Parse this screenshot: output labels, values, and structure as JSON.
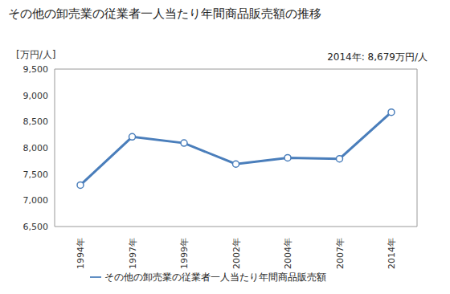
{
  "chart_data": {
    "type": "line",
    "title": "その他の卸売業の従業者一人当たり年間商品販売額の推移",
    "y_label": "[万円/人]",
    "annotation": "2014年: 8,679万円/人",
    "categories": [
      "1994年",
      "1997年",
      "1999年",
      "2002年",
      "2004年",
      "2007年",
      "2014年"
    ],
    "series": [
      {
        "name": "その他の卸売業の従業者一人当たり年間商品販売額",
        "color": "#4a7ebb",
        "marker": "circle",
        "values": [
          7290,
          8210,
          8090,
          7690,
          7810,
          7790,
          8679
        ]
      }
    ],
    "ylim": [
      6500,
      9500
    ],
    "yticks": [
      {
        "value": 6500,
        "label": "6,500"
      },
      {
        "value": 7000,
        "label": "7,000"
      },
      {
        "value": 7500,
        "label": "7,500"
      },
      {
        "value": 8000,
        "label": "8,000"
      },
      {
        "value": 8500,
        "label": "8,500"
      },
      {
        "value": 9000,
        "label": "9,000"
      },
      {
        "value": 9500,
        "label": "9,500"
      }
    ],
    "grid": false,
    "legend": "bottom"
  }
}
